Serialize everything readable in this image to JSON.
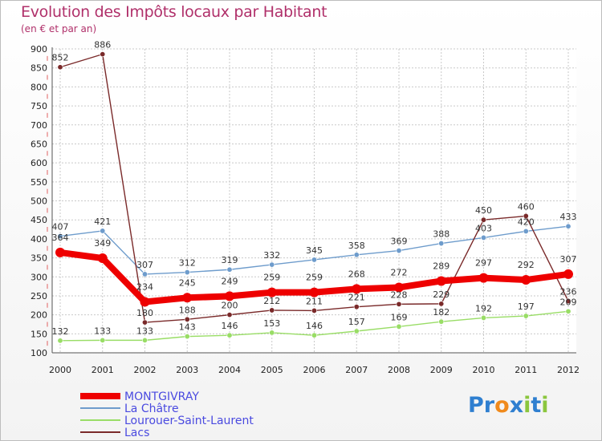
{
  "chart_data": {
    "type": "line",
    "title": "Evolution des Impôts locaux par Habitant",
    "subtitle": "(en € et par an)",
    "xlabel": "",
    "ylabel": "",
    "ylim": [
      100,
      900
    ],
    "yticks": [
      100,
      150,
      200,
      250,
      300,
      350,
      400,
      450,
      500,
      550,
      600,
      650,
      700,
      750,
      800,
      850,
      900
    ],
    "categories": [
      "2000",
      "2001",
      "2002",
      "2003",
      "2004",
      "2005",
      "2006",
      "2007",
      "2008",
      "2009",
      "2010",
      "2011",
      "2012"
    ],
    "series": [
      {
        "name": "MONTGIVRAY",
        "color": "#ee0000",
        "values": [
          364,
          349,
          234,
          245,
          249,
          259,
          259,
          268,
          272,
          289,
          297,
          292,
          307
        ]
      },
      {
        "name": "La Châtre",
        "color": "#6e9ccc",
        "values": [
          407,
          421,
          307,
          312,
          319,
          332,
          345,
          358,
          369,
          388,
          403,
          420,
          433
        ]
      },
      {
        "name": "Lourouer-Saint-Laurent",
        "color": "#99dd66",
        "values": [
          132,
          133,
          133,
          143,
          146,
          153,
          146,
          157,
          169,
          182,
          192,
          197,
          209
        ]
      },
      {
        "name": "Lacs",
        "color": "#7a2a2a",
        "values": [
          852,
          886,
          180,
          188,
          200,
          212,
          211,
          221,
          228,
          229,
          450,
          460,
          236
        ]
      }
    ],
    "legend_position": "bottom-left",
    "grid": true
  },
  "logo": {
    "text": "Proxiti",
    "letters": [
      "P",
      "r",
      "o",
      "x",
      "i",
      "t",
      "i"
    ],
    "colors": [
      "#2f7fd0",
      "#2f7fd0",
      "#f08a1c",
      "#2f7fd0",
      "#8bc63e",
      "#2f7fd0",
      "#8bc63e"
    ]
  }
}
